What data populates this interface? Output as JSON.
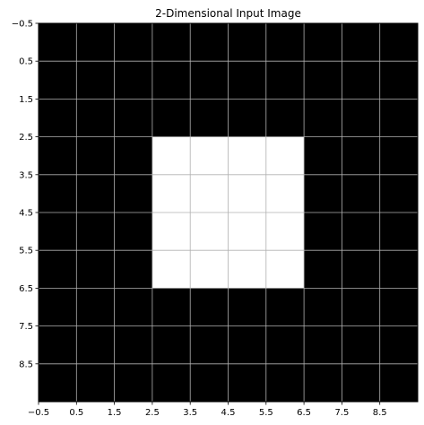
{
  "chart_data": {
    "type": "heatmap",
    "title": "2-Dimensional Input Image",
    "xlabel": "",
    "ylabel": "",
    "xlim": [
      -0.5,
      9.5
    ],
    "ylim": [
      9.5,
      -0.5
    ],
    "x_ticks": [
      -0.5,
      0.5,
      1.5,
      2.5,
      3.5,
      4.5,
      5.5,
      6.5,
      7.5,
      8.5
    ],
    "x_tick_labels": [
      "−0.5",
      "0.5",
      "1.5",
      "2.5",
      "3.5",
      "4.5",
      "5.5",
      "6.5",
      "7.5",
      "8.5"
    ],
    "y_ticks": [
      -0.5,
      0.5,
      1.5,
      2.5,
      3.5,
      4.5,
      5.5,
      6.5,
      7.5,
      8.5
    ],
    "y_tick_labels": [
      "−0.5",
      "0.5",
      "1.5",
      "2.5",
      "3.5",
      "4.5",
      "5.5",
      "6.5",
      "7.5",
      "8.5"
    ],
    "grid": true,
    "colormap": "gray",
    "colors": {
      "low": "#000000",
      "high": "#ffffff",
      "grid": "#b0b0b0"
    },
    "values": [
      [
        0,
        0,
        0,
        0,
        0,
        0,
        0,
        0,
        0,
        0
      ],
      [
        0,
        0,
        0,
        0,
        0,
        0,
        0,
        0,
        0,
        0
      ],
      [
        0,
        0,
        0,
        0,
        0,
        0,
        0,
        0,
        0,
        0
      ],
      [
        0,
        0,
        0,
        1,
        1,
        1,
        1,
        0,
        0,
        0
      ],
      [
        0,
        0,
        0,
        1,
        1,
        1,
        1,
        0,
        0,
        0
      ],
      [
        0,
        0,
        0,
        1,
        1,
        1,
        1,
        0,
        0,
        0
      ],
      [
        0,
        0,
        0,
        1,
        1,
        1,
        1,
        0,
        0,
        0
      ],
      [
        0,
        0,
        0,
        0,
        0,
        0,
        0,
        0,
        0,
        0
      ],
      [
        0,
        0,
        0,
        0,
        0,
        0,
        0,
        0,
        0,
        0
      ],
      [
        0,
        0,
        0,
        0,
        0,
        0,
        0,
        0,
        0,
        0
      ]
    ]
  }
}
